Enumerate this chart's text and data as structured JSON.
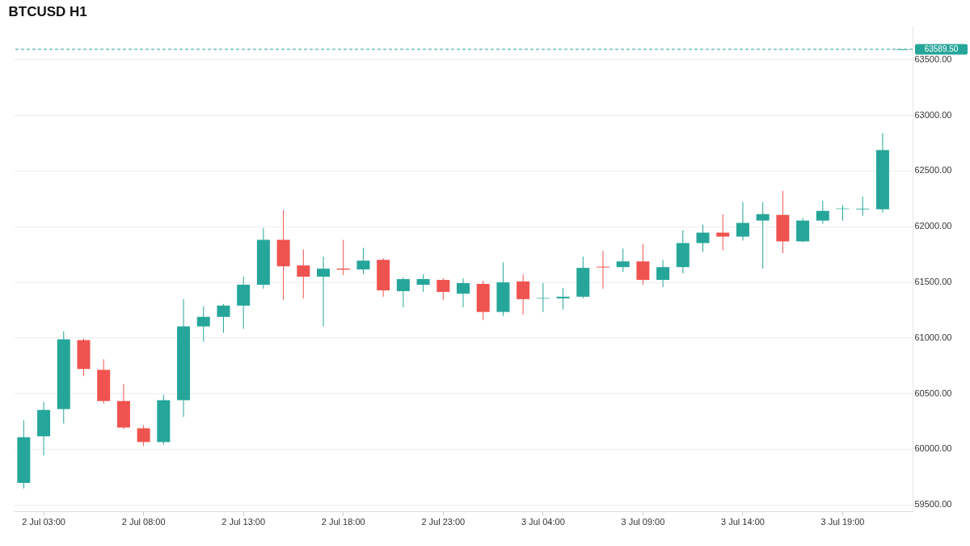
{
  "chart_data": {
    "type": "candlestick",
    "title": "BTCUSD H1",
    "categories": [
      null,
      "2 Jul 03:00",
      null,
      null,
      null,
      null,
      "2 Jul 08:00",
      null,
      null,
      null,
      null,
      "2 Jul 13:00",
      null,
      null,
      null,
      null,
      "2 Jul 18:00",
      null,
      null,
      null,
      null,
      "2 Jul 23:00",
      null,
      null,
      null,
      null,
      "3 Jul 04:00",
      null,
      null,
      null,
      null,
      "3 Jul 09:00",
      null,
      null,
      null,
      null,
      "3 Jul 14:00",
      null,
      null,
      null,
      null,
      "3 Jul 19:00",
      null,
      null,
      null
    ],
    "ohlc": [
      [
        59695,
        60257,
        59644,
        60105
      ],
      [
        60113,
        60422,
        59940,
        60350
      ],
      [
        60358,
        61057,
        60228,
        60985
      ],
      [
        60977,
        60992,
        60653,
        60718
      ],
      [
        60710,
        60805,
        60408,
        60430
      ],
      [
        60430,
        60581,
        60177,
        60192
      ],
      [
        60185,
        60213,
        60026,
        60062
      ],
      [
        60062,
        60487,
        60040,
        60437
      ],
      [
        60437,
        61345,
        60286,
        61100
      ],
      [
        61100,
        61280,
        60963,
        61186
      ],
      [
        61186,
        61302,
        61042,
        61287
      ],
      [
        61287,
        61547,
        61078,
        61475
      ],
      [
        61475,
        61986,
        61439,
        61878
      ],
      [
        61878,
        62145,
        61338,
        61640
      ],
      [
        61648,
        61792,
        61352,
        61547
      ],
      [
        61547,
        61727,
        61100,
        61619
      ],
      [
        61620,
        61878,
        61561,
        61610
      ],
      [
        61612,
        61806,
        61568,
        61691
      ],
      [
        61698,
        61713,
        61367,
        61424
      ],
      [
        61417,
        61540,
        61273,
        61525
      ],
      [
        61475,
        61568,
        61410,
        61525
      ],
      [
        61518,
        61532,
        61338,
        61410
      ],
      [
        61395,
        61532,
        61273,
        61489
      ],
      [
        61482,
        61511,
        61158,
        61230
      ],
      [
        61230,
        61676,
        61194,
        61496
      ],
      [
        61504,
        61568,
        61208,
        61345
      ],
      [
        61350,
        61490,
        61230,
        61355
      ],
      [
        61352,
        61446,
        61251,
        61367
      ],
      [
        61367,
        61727,
        61352,
        61626
      ],
      [
        61637,
        61778,
        61439,
        61630
      ],
      [
        61633,
        61800,
        61590,
        61684
      ],
      [
        61684,
        61842,
        61475,
        61518
      ],
      [
        61518,
        61698,
        61453,
        61633
      ],
      [
        61633,
        61965,
        61576,
        61849
      ],
      [
        61849,
        62015,
        61770,
        61943
      ],
      [
        61943,
        62109,
        61785,
        61907
      ],
      [
        61907,
        62217,
        61871,
        62030
      ],
      [
        62051,
        62217,
        61619,
        62109
      ],
      [
        62102,
        62318,
        61756,
        61864
      ],
      [
        61864,
        62073,
        61857,
        62051
      ],
      [
        62051,
        62231,
        62022,
        62138
      ],
      [
        62155,
        62188,
        62051,
        62160
      ],
      [
        62152,
        62267,
        62094,
        62158
      ],
      [
        62152,
        62837,
        62123,
        62685
      ],
      [
        63585,
        63592,
        63580,
        63589.5
      ]
    ],
    "colors": [
      "#26a69a",
      "#26a69a",
      "#26a69a",
      "#ef5350",
      "#ef5350",
      "#ef5350",
      "#ef5350",
      "#26a69a",
      "#26a69a",
      "#26a69a",
      "#26a69a",
      "#26a69a",
      "#26a69a",
      "#ef5350",
      "#ef5350",
      "#26a69a",
      "#ef5350",
      "#26a69a",
      "#ef5350",
      "#26a69a",
      "#26a69a",
      "#ef5350",
      "#26a69a",
      "#ef5350",
      "#26a69a",
      "#ef5350",
      "#26a69a",
      "#26a69a",
      "#26a69a",
      "#ef5350",
      "#26a69a",
      "#ef5350",
      "#26a69a",
      "#26a69a",
      "#26a69a",
      "#ef5350",
      "#26a69a",
      "#26a69a",
      "#ef5350",
      "#26a69a",
      "#26a69a",
      "#26a69a",
      "#26a69a",
      "#26a69a",
      "#26a69a"
    ],
    "ylim": [
      59440,
      63800
    ],
    "yticks": [
      {
        "value": 59500,
        "label": "59500.00"
      },
      {
        "value": 60000,
        "label": "60000.00"
      },
      {
        "value": 60500,
        "label": "60500.00"
      },
      {
        "value": 61000,
        "label": "61000.00"
      },
      {
        "value": 61500,
        "label": "61500.00"
      },
      {
        "value": 62000,
        "label": "62000.00"
      },
      {
        "value": 62500,
        "label": "62500.00"
      },
      {
        "value": 63000,
        "label": "63000.00"
      },
      {
        "value": 63500,
        "label": "63500.00"
      }
    ],
    "ref_lines": [
      {
        "axis": "y",
        "value": 63589.5,
        "label": "63589.50",
        "color": "#26a69a",
        "line_style": "dashed"
      }
    ],
    "grid": "y"
  }
}
